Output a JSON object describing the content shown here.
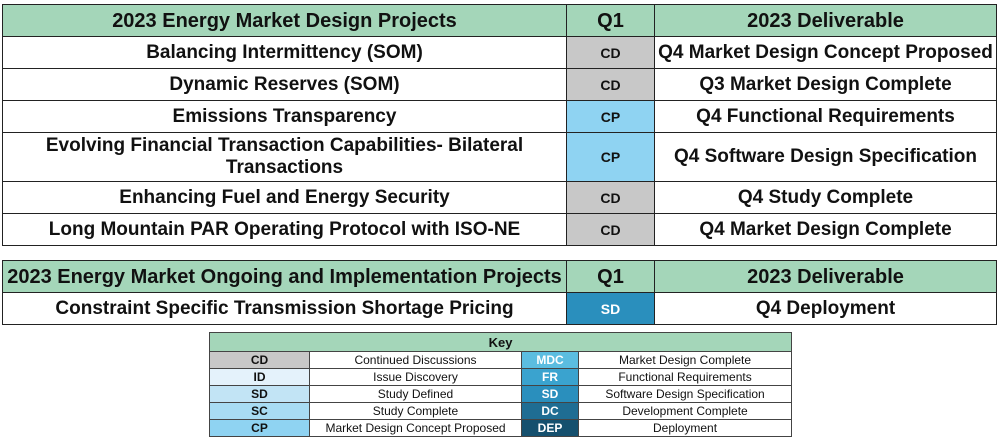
{
  "colors": {
    "header_green": "#a4d6b9",
    "CD": "#c8c8c8",
    "ID": "#e4f2fb",
    "SD": "#c2e4f5",
    "SC": "#a8dcf3",
    "CP": "#8fd3f2",
    "MDC": "#5bbde0",
    "FR": "#3aa3cf",
    "SD2": "#2a8fbd",
    "DC": "#1f6d93",
    "DEP": "#15506e"
  },
  "design": {
    "header": {
      "project": "2023 Energy Market Design Projects",
      "q1": "Q1",
      "deliverable": "2023 Deliverable"
    },
    "rows": [
      {
        "project": "Balancing Intermittency (SOM)",
        "status": "CD",
        "deliverable": "Q4 Market Design Concept Proposed"
      },
      {
        "project": "Dynamic Reserves (SOM)",
        "status": "CD",
        "deliverable": "Q3 Market Design Complete"
      },
      {
        "project": "Emissions Transparency",
        "status": "CP",
        "deliverable": "Q4 Functional Requirements"
      },
      {
        "project": "Evolving Financial Transaction Capabilities- Bilateral Transactions",
        "status": "CP",
        "deliverable": "Q4 Software Design Specification"
      },
      {
        "project": "Enhancing Fuel and Energy Security",
        "status": "CD",
        "deliverable": "Q4 Study Complete"
      },
      {
        "project": "Long Mountain PAR Operating Protocol with ISO-NE",
        "status": "CD",
        "deliverable": "Q4 Market Design Complete"
      }
    ]
  },
  "ongoing": {
    "header": {
      "project": "2023 Energy Market Ongoing and Implementation Projects",
      "q1": "Q1",
      "deliverable": "2023 Deliverable"
    },
    "rows": [
      {
        "project": "Constraint Specific Transmission Shortage Pricing",
        "status": "SD",
        "deliverable": "Q4 Deployment"
      }
    ]
  },
  "key": {
    "title": "Key",
    "rows": [
      {
        "code_left": "CD",
        "label_left": "Continued Discussions",
        "code_right": "MDC",
        "label_right": "Market Design Complete"
      },
      {
        "code_left": "ID",
        "label_left": "Issue Discovery",
        "code_right": "FR",
        "label_right": "Functional Requirements"
      },
      {
        "code_left": "SD",
        "label_left": "Study Defined",
        "code_right": "SD",
        "label_right": "Software Design Specification"
      },
      {
        "code_left": "SC",
        "label_left": "Study Complete",
        "code_right": "DC",
        "label_right": "Development Complete"
      },
      {
        "code_left": "CP",
        "label_left": "Market Design Concept Proposed",
        "code_right": "DEP",
        "label_right": "Deployment"
      }
    ]
  }
}
